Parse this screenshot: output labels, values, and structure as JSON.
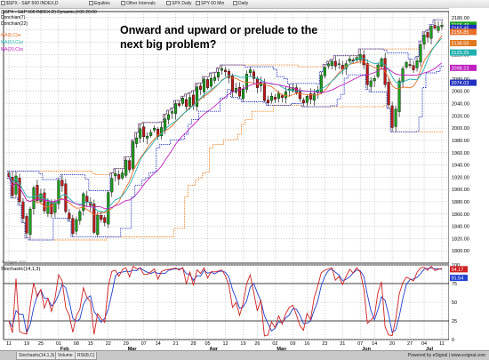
{
  "tabbar": {
    "tabs": [
      {
        "label": "$SPX - S&P 500 INDEX,D"
      },
      {
        "label": "Equities"
      },
      {
        "label": "Other Intervals"
      },
      {
        "label": "SPX Daily"
      },
      {
        "label": "SPY 60 Min"
      },
      {
        "label": "Daily"
      }
    ]
  },
  "legend": {
    "header": "($SPX - S&P 500 INDEX,D) Dynamic,0:00 20:00",
    "items": [
      {
        "label": "Donchian(7)",
        "color": "#000000"
      },
      {
        "label": "Donchian(22)",
        "color": "#000000"
      },
      {
        "label": "MA(8,C)w",
        "color": "#e8702a"
      },
      {
        "label": "MA(10,C)w",
        "color": "#20b0b0"
      },
      {
        "label": "MA(20,C)w",
        "color": "#c020c0"
      }
    ]
  },
  "annotation": {
    "line1": "Onward and upward or prelude to the",
    "line2": "next big problem?"
  },
  "watermark": "© eSignal 2015",
  "stoch_label": "Stochastic(14,1,3)",
  "bottom_tabs": [
    {
      "label": "Stochastic(14,1,3)"
    },
    {
      "label": "Volume"
    },
    {
      "label": "RSI(8,C)"
    }
  ],
  "brand": "Powered by eSignal | www.esignal.com",
  "colors": {
    "up": "#1aa01a",
    "down": "#c01818",
    "donchian_outer": "#f08020",
    "donchian_inner": "#2030c0",
    "ma8": "#e8702a",
    "ma10": "#20b0b0",
    "ma20": "#c020c0",
    "stoch_k": "#d02020",
    "stoch_d": "#2040d0"
  },
  "chart_data": [
    {
      "type": "candlestick",
      "title": "",
      "ylim": [
        1780,
        2190
      ],
      "y_ticks": [
        1800,
        1820,
        1840,
        1860,
        1880,
        1900,
        1920,
        1940,
        1960,
        1980,
        2000,
        2020,
        2040,
        2060,
        2080,
        2100,
        2120,
        2140,
        2160,
        2180
      ],
      "x_ticks": [
        "11",
        "19",
        "25",
        "01",
        "08",
        "15",
        "22",
        "29",
        "07",
        "14",
        "21",
        "28",
        "05",
        "12",
        "19",
        "26",
        "02",
        "09",
        "16",
        "23",
        "31",
        "07",
        "14",
        "20",
        "27",
        "04",
        "11"
      ],
      "month_labels": [
        "Feb",
        "Mar",
        "Apr",
        "May",
        "Jun",
        "Jul"
      ],
      "last_value_labels": [
        {
          "value": 2168.48,
          "color": "#1aa01a"
        },
        {
          "value": 2163.45,
          "color": "#2030c0"
        },
        {
          "value": 2156.85,
          "color": "#e8702a"
        },
        {
          "value": 2138.55,
          "color": "#e07820"
        },
        {
          "value": 2123.25,
          "color": "#20b0b0"
        },
        {
          "value": 2098.23,
          "color": "#c020c0"
        },
        {
          "value": 2074.03,
          "color": "#2030c0"
        }
      ],
      "closes": [
        1921,
        1890,
        1922,
        1880,
        1853,
        1829,
        1868,
        1903,
        1882,
        1893,
        1865,
        1880,
        1860,
        1880,
        1915,
        1906,
        1864,
        1852,
        1828,
        1851,
        1864,
        1893,
        1880,
        1874,
        1830,
        1858,
        1851,
        1846,
        1895,
        1918,
        1926,
        1917,
        1927,
        1948,
        1932,
        1978,
        1984,
        1999,
        1986,
        1987,
        1993,
        2000,
        1986,
        2001,
        2015,
        2022,
        2027,
        2040,
        2037,
        2049,
        2035,
        2050,
        2037,
        2067,
        2063,
        2080,
        2066,
        2081,
        2083,
        2091,
        2097,
        2092,
        2082,
        2060,
        2065,
        2052,
        2064,
        2088,
        2095,
        2081,
        2066,
        2075,
        2045,
        2041,
        2052,
        2047,
        2057,
        2050,
        2059,
        2064,
        2066,
        2058,
        2048,
        2041,
        2052,
        2047,
        2056,
        2062,
        2086,
        2099,
        2105,
        2109,
        2101,
        2105,
        2096,
        2105,
        2113,
        2109,
        2115,
        2120,
        2103,
        2071,
        2077,
        2081,
        2103,
        2113,
        2071,
        2038,
        2001,
        2031,
        2077,
        2097,
        2107,
        2102,
        2095,
        2110,
        2136,
        2152,
        2148,
        2166,
        2163,
        2166,
        2168
      ],
      "stochastic": {
        "ylim": [
          0,
          100
        ],
        "y_ticks": [
          0,
          25,
          50,
          75,
          100
        ],
        "k_last": 94.17,
        "d_last": 91.54
      }
    }
  ]
}
